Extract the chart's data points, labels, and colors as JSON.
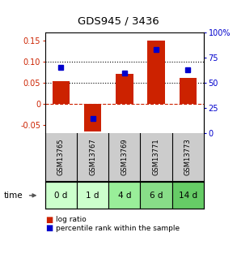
{
  "title": "GDS945 / 3436",
  "categories": [
    "GSM13765",
    "GSM13767",
    "GSM13769",
    "GSM13771",
    "GSM13773"
  ],
  "time_labels": [
    "0 d",
    "1 d",
    "4 d",
    "6 d",
    "14 d"
  ],
  "log_ratio": [
    0.054,
    -0.065,
    0.072,
    0.15,
    0.062
  ],
  "percentile_rank": [
    65,
    15,
    60,
    83,
    63
  ],
  "bar_color": "#cc2200",
  "dot_color": "#0000cc",
  "ylim_left": [
    -0.07,
    0.17
  ],
  "ylim_right": [
    0,
    100
  ],
  "yticks_left": [
    -0.05,
    0.0,
    0.05,
    0.1,
    0.15
  ],
  "yticks_right": [
    0,
    25,
    50,
    75,
    100
  ],
  "ytick_labels_left": [
    "-0.05",
    "0",
    "0.05",
    "0.10",
    "0.15"
  ],
  "ytick_labels_right": [
    "0",
    "25",
    "50",
    "75",
    "100%"
  ],
  "hline_y": [
    0.05,
    0.1
  ],
  "zero_line_y": 0.0,
  "zero_color": "#cc2200",
  "bg_color": "#ffffff",
  "sample_bg": "#cccccc",
  "time_bg_colors": [
    "#ccffcc",
    "#ccffcc",
    "#99ee99",
    "#88dd88",
    "#66cc66"
  ],
  "legend_log_ratio": "log ratio",
  "legend_percentile": "percentile rank within the sample"
}
